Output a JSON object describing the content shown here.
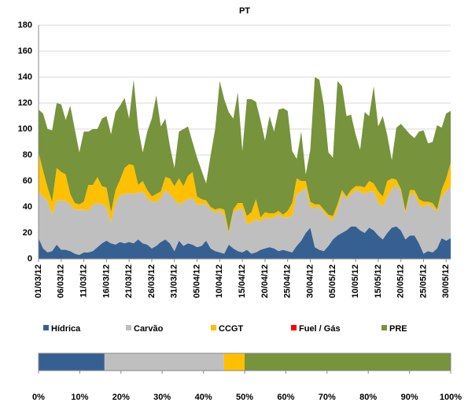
{
  "chart_data": [
    {
      "type": "stacked-area",
      "title": "PT",
      "categories": [
        "01/03/12",
        null,
        null,
        null,
        null,
        "06/03/12",
        null,
        null,
        null,
        null,
        "11/03/12",
        null,
        null,
        null,
        null,
        "16/03/12",
        null,
        null,
        null,
        null,
        "21/03/12",
        null,
        null,
        null,
        null,
        "26/03/12",
        null,
        null,
        null,
        null,
        "31/03/12",
        null,
        null,
        null,
        null,
        "05/04/12",
        null,
        null,
        null,
        null,
        "10/04/12",
        null,
        null,
        null,
        null,
        "15/04/12",
        null,
        null,
        null,
        null,
        "20/04/12",
        null,
        null,
        null,
        null,
        "25/04/12",
        null,
        null,
        null,
        null,
        "30/04/12",
        null,
        null,
        null,
        null,
        "05/05/12",
        null,
        null,
        null,
        null,
        "10/05/12",
        null,
        null,
        null,
        null,
        "15/05/12",
        null,
        null,
        null,
        null,
        "20/05/12",
        null,
        null,
        null,
        null,
        "25/05/12",
        null,
        null,
        null,
        null,
        "30/05/12",
        null
      ],
      "series": [
        {
          "name": "Hídrica",
          "color": "#376092",
          "values": [
            16,
            8,
            5,
            6,
            11,
            7,
            7,
            6,
            4,
            3,
            5,
            5,
            6,
            9,
            12,
            14,
            12,
            11,
            13,
            12,
            13,
            12,
            15,
            12,
            11,
            8,
            10,
            13,
            15,
            12,
            6,
            14,
            10,
            12,
            11,
            9,
            10,
            14,
            8,
            6,
            5,
            4,
            11,
            8,
            6,
            5,
            7,
            4,
            5,
            7,
            8,
            9,
            8,
            6,
            7,
            6,
            5,
            10,
            14,
            20,
            24,
            9,
            7,
            6,
            10,
            15,
            18,
            20,
            22,
            25,
            25,
            22,
            20,
            24,
            22,
            18,
            15,
            20,
            24,
            25,
            22,
            15,
            18,
            18,
            12,
            4,
            6,
            5,
            8,
            16,
            14,
            16
          ]
        },
        {
          "name": "Carvão",
          "color": "#bfbfbf",
          "values": [
            36,
            40,
            40,
            28,
            34,
            38,
            38,
            36,
            34,
            35,
            33,
            32,
            36,
            34,
            30,
            26,
            16,
            32,
            36,
            38,
            38,
            38,
            36,
            40,
            36,
            36,
            34,
            34,
            38,
            38,
            40,
            28,
            34,
            34,
            36,
            33,
            32,
            28,
            30,
            30,
            32,
            30,
            8,
            28,
            32,
            34,
            20,
            24,
            26,
            22,
            24,
            22,
            24,
            28,
            25,
            26,
            28,
            40,
            38,
            35,
            16,
            30,
            33,
            30,
            22,
            15,
            20,
            30,
            24,
            25,
            28,
            30,
            30,
            28,
            30,
            26,
            25,
            28,
            30,
            32,
            30,
            20,
            32,
            32,
            30,
            36,
            36,
            35,
            28,
            32,
            38,
            40
          ]
        },
        {
          "name": "CCGT",
          "color": "#ffc000",
          "values": [
            30,
            20,
            10,
            10,
            25,
            22,
            20,
            8,
            5,
            4,
            6,
            20,
            15,
            20,
            14,
            15,
            8,
            10,
            12,
            20,
            22,
            22,
            6,
            8,
            6,
            4,
            6,
            5,
            10,
            12,
            10,
            20,
            12,
            18,
            20,
            6,
            4,
            3,
            2,
            2,
            2,
            4,
            2,
            2,
            5,
            4,
            6,
            8,
            15,
            3,
            4,
            4,
            3,
            3,
            2,
            5,
            10,
            12,
            8,
            5,
            4,
            3,
            2,
            2,
            2,
            3,
            4,
            3,
            2,
            3,
            3,
            4,
            5,
            8,
            6,
            8,
            8,
            12,
            8,
            4,
            2,
            2,
            3,
            3,
            4,
            4,
            2,
            3,
            2,
            5,
            10,
            18
          ]
        },
        {
          "name": "Fuel / Gás",
          "color": "#ff0000",
          "values": [
            0,
            0,
            0,
            0,
            0,
            0,
            0,
            0,
            0,
            0,
            0,
            0,
            0,
            0,
            0,
            0,
            0,
            0,
            0,
            0,
            0,
            0,
            0,
            0,
            0,
            0,
            0,
            0,
            0,
            0,
            0,
            0,
            0,
            0,
            0,
            0,
            0,
            0,
            0,
            0,
            0,
            0,
            0,
            0,
            0,
            0,
            0,
            0,
            0,
            0,
            0,
            0,
            0,
            0,
            0,
            0,
            0,
            0,
            0,
            0,
            0,
            0,
            0,
            0,
            0,
            0,
            0,
            0,
            0,
            0,
            0,
            0,
            0,
            0,
            0,
            0,
            0,
            0,
            0,
            0,
            0,
            0,
            0,
            0,
            0,
            0,
            0,
            0,
            0,
            0,
            0,
            0
          ]
        },
        {
          "name": "PRE",
          "color": "#77933c",
          "values": [
            33,
            44,
            45,
            55,
            50,
            52,
            42,
            68,
            57,
            40,
            54,
            41,
            43,
            37,
            52,
            55,
            60,
            60,
            57,
            54,
            35,
            66,
            44,
            22,
            45,
            60,
            76,
            50,
            45,
            25,
            14,
            36,
            44,
            38,
            23,
            30,
            22,
            13,
            40,
            62,
            98,
            85,
            92,
            70,
            85,
            40,
            90,
            87,
            75,
            75,
            55,
            75,
            63,
            78,
            82,
            77,
            40,
            15,
            38,
            5,
            40,
            98,
            96,
            80,
            48,
            45,
            95,
            80,
            62,
            58,
            40,
            28,
            58,
            50,
            75,
            50,
            62,
            35,
            14,
            40,
            50,
            63,
            43,
            40,
            52,
            55,
            45,
            47,
            65,
            48,
            50,
            40
          ]
        }
      ],
      "ylim": [
        0,
        180
      ],
      "yticks": [
        0,
        20,
        40,
        60,
        80,
        100,
        120,
        140,
        160,
        180
      ],
      "grid": true
    },
    {
      "type": "stacked-bar-100",
      "values": [
        16,
        29,
        5,
        0,
        50
      ],
      "xlim": [
        0,
        100
      ],
      "xticks": [
        {
          "value": 0,
          "label": "0%"
        },
        {
          "value": 10,
          "label": "10%"
        },
        {
          "value": 20,
          "label": "20%"
        },
        {
          "value": 30,
          "label": "30%"
        },
        {
          "value": 40,
          "label": "40%"
        },
        {
          "value": 50,
          "label": "50%"
        },
        {
          "value": 60,
          "label": "60%"
        },
        {
          "value": 70,
          "label": "70%"
        },
        {
          "value": 80,
          "label": "80%"
        },
        {
          "value": 90,
          "label": "90%"
        },
        {
          "value": 100,
          "label": "100%"
        }
      ]
    }
  ]
}
